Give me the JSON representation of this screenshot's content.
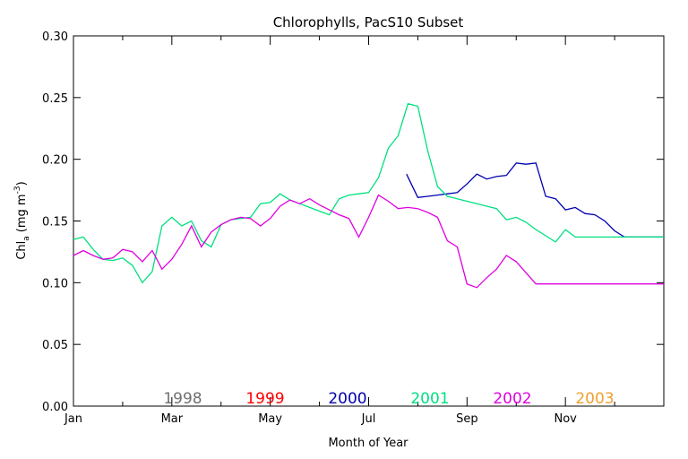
{
  "chart_data": {
    "type": "line",
    "title": "Chlorophylls, PacS10 Subset",
    "xlabel": "Month of Year",
    "ylabel_main": "Chl",
    "ylabel_sub": "a",
    "ylabel_unit": "(mg m",
    "ylabel_exp": "-3",
    "ylabel_close": ")",
    "xlim": [
      0,
      12
    ],
    "ylim": [
      0,
      0.3
    ],
    "x_ticks": [
      {
        "value": 0,
        "label": "Jan"
      },
      {
        "value": 2,
        "label": "Mar"
      },
      {
        "value": 4,
        "label": "May"
      },
      {
        "value": 6,
        "label": "Jul"
      },
      {
        "value": 8,
        "label": "Sep"
      },
      {
        "value": 10,
        "label": "Nov"
      }
    ],
    "y_ticks": [
      {
        "value": 0.0,
        "label": "0.00"
      },
      {
        "value": 0.05,
        "label": "0.05"
      },
      {
        "value": 0.1,
        "label": "0.10"
      },
      {
        "value": 0.15,
        "label": "0.15"
      },
      {
        "value": 0.2,
        "label": "0.20"
      },
      {
        "value": 0.25,
        "label": "0.25"
      },
      {
        "value": 0.3,
        "label": "0.30"
      }
    ],
    "legend_placement": "bottom",
    "grid": false,
    "series": [
      {
        "name": "1998",
        "color": "#707070",
        "x": [],
        "y": []
      },
      {
        "name": "1999",
        "color": "#ff0000",
        "x": [],
        "y": []
      },
      {
        "name": "2000",
        "color": "#0000b0",
        "x": [
          6.77,
          7.0,
          7.2,
          7.4,
          7.6,
          7.8,
          8.0,
          8.2,
          8.4,
          8.6,
          8.8,
          9.0,
          9.2,
          9.4,
          9.6,
          9.8,
          10.0,
          10.2,
          10.4,
          10.6,
          10.8,
          11.0,
          11.2,
          11.4,
          11.6,
          11.8,
          12.0
        ],
        "y": [
          0.188,
          0.169,
          0.17,
          0.171,
          0.172,
          0.173,
          0.18,
          0.188,
          0.184,
          0.186,
          0.187,
          0.197,
          0.196,
          0.197,
          0.17,
          0.168,
          0.159,
          0.161,
          0.156,
          0.155,
          0.15,
          0.142,
          0.137,
          0.137,
          0.137,
          0.137,
          0.137
        ]
      },
      {
        "name": "2001",
        "color": "#00e080",
        "x": [
          0.0,
          0.2,
          0.4,
          0.6,
          0.8,
          1.0,
          1.2,
          1.4,
          1.6,
          1.8,
          2.0,
          2.2,
          2.4,
          2.6,
          2.8,
          3.0,
          3.2,
          3.4,
          3.6,
          3.8,
          4.0,
          4.2,
          4.4,
          4.6,
          4.8,
          5.0,
          5.2,
          5.4,
          5.6,
          5.8,
          6.0,
          6.2,
          6.4,
          6.6,
          6.8,
          7.0,
          7.2,
          7.4,
          7.6,
          7.8,
          8.0,
          8.2,
          8.4,
          8.6,
          8.8,
          9.0,
          9.2,
          9.4,
          9.6,
          9.8,
          10.0,
          10.2,
          10.4,
          10.6,
          10.8,
          11.0,
          11.2,
          11.4,
          11.6,
          11.8,
          12.0
        ],
        "y": [
          0.135,
          0.137,
          0.127,
          0.119,
          0.118,
          0.12,
          0.114,
          0.1,
          0.109,
          0.146,
          0.153,
          0.146,
          0.15,
          0.134,
          0.129,
          0.147,
          0.151,
          0.152,
          0.153,
          0.164,
          0.165,
          0.172,
          0.167,
          0.164,
          0.161,
          0.158,
          0.155,
          0.168,
          0.171,
          0.172,
          0.173,
          0.185,
          0.209,
          0.219,
          0.245,
          0.243,
          0.207,
          0.178,
          0.17,
          0.168,
          0.166,
          0.164,
          0.162,
          0.16,
          0.151,
          0.153,
          0.149,
          0.143,
          0.138,
          0.133,
          0.143,
          0.137,
          0.137,
          0.137,
          0.137,
          0.137,
          0.137,
          0.137,
          0.137,
          0.137,
          0.137
        ]
      },
      {
        "name": "2002",
        "color": "#e000e0",
        "x": [
          0.0,
          0.2,
          0.4,
          0.6,
          0.8,
          1.0,
          1.2,
          1.4,
          1.6,
          1.8,
          2.0,
          2.2,
          2.4,
          2.6,
          2.8,
          3.0,
          3.2,
          3.4,
          3.6,
          3.8,
          4.0,
          4.2,
          4.4,
          4.6,
          4.8,
          5.0,
          5.2,
          5.4,
          5.6,
          5.8,
          6.0,
          6.2,
          6.4,
          6.6,
          6.8,
          7.0,
          7.2,
          7.4,
          7.6,
          7.8,
          8.0,
          8.2,
          8.4,
          8.6,
          8.8,
          9.0,
          9.2,
          9.4,
          9.6,
          9.8,
          10.0,
          10.2,
          10.4,
          10.6,
          10.8,
          11.0,
          11.2,
          11.4,
          11.6,
          11.8,
          12.0
        ],
        "y": [
          0.122,
          0.126,
          0.122,
          0.119,
          0.12,
          0.127,
          0.125,
          0.117,
          0.126,
          0.111,
          0.119,
          0.131,
          0.146,
          0.129,
          0.141,
          0.147,
          0.151,
          0.153,
          0.152,
          0.146,
          0.152,
          0.162,
          0.167,
          0.164,
          0.168,
          0.163,
          0.159,
          0.155,
          0.152,
          0.137,
          0.153,
          0.171,
          0.166,
          0.16,
          0.161,
          0.16,
          0.157,
          0.153,
          0.134,
          0.129,
          0.099,
          0.096,
          0.104,
          0.111,
          0.122,
          0.117,
          0.108,
          0.099,
          0.099,
          0.099,
          0.099,
          0.099,
          0.099,
          0.099,
          0.099,
          0.099,
          0.099,
          0.099,
          0.099,
          0.099,
          0.099
        ]
      },
      {
        "name": "2003",
        "color": "#f0a030",
        "x": [],
        "y": []
      }
    ]
  }
}
